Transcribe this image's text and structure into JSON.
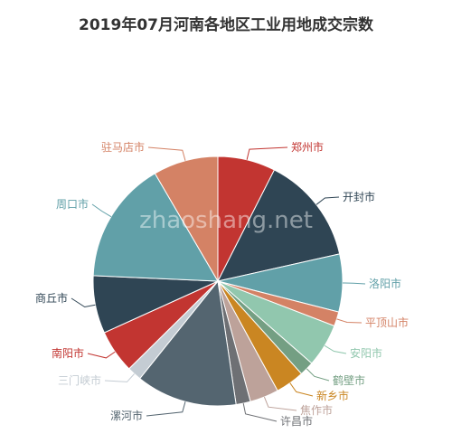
{
  "watermark": "zhaoshang.net",
  "chart_data": {
    "type": "pie",
    "title": "2019年07月河南各地区工业用地成交宗数",
    "slices": [
      {
        "name": "郑州市",
        "value": 8,
        "color": "#c23531"
      },
      {
        "name": "开封市",
        "value": 15,
        "color": "#2f4554"
      },
      {
        "name": "洛阳市",
        "value": 8,
        "color": "#61a0a8"
      },
      {
        "name": "平顶山市",
        "value": 2,
        "color": "#d48265"
      },
      {
        "name": "安阳市",
        "value": 6,
        "color": "#91c7ae"
      },
      {
        "name": "鹤壁市",
        "value": 2,
        "color": "#749f83"
      },
      {
        "name": "新乡市",
        "value": 4,
        "color": "#ca8622"
      },
      {
        "name": "焦作市",
        "value": 4,
        "color": "#bda29a"
      },
      {
        "name": "许昌市",
        "value": 2,
        "color": "#6e7074"
      },
      {
        "name": "漯河市",
        "value": 14,
        "color": "#546570"
      },
      {
        "name": "三门峡市",
        "value": 2,
        "color": "#c4ccd3"
      },
      {
        "name": "南阳市",
        "value": 6,
        "color": "#c23531"
      },
      {
        "name": "商丘市",
        "value": 8,
        "color": "#2f4554"
      },
      {
        "name": "周口市",
        "value": 17,
        "color": "#61a0a8"
      },
      {
        "name": "驻马店市",
        "value": 9,
        "color": "#d48265"
      }
    ]
  }
}
